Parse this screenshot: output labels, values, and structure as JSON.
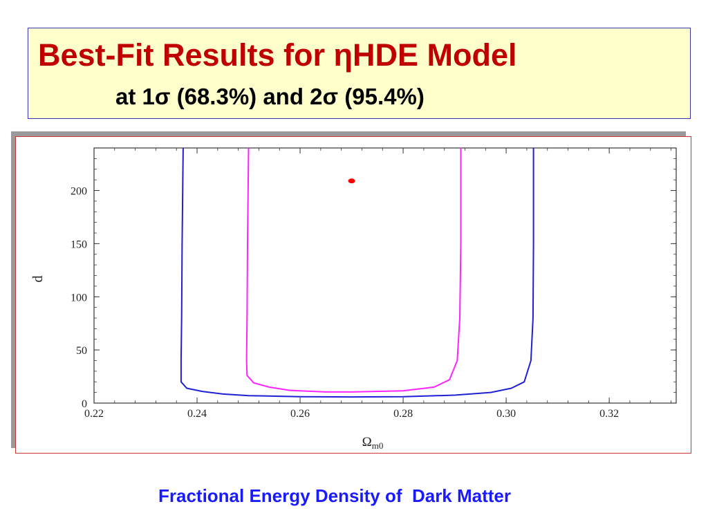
{
  "title": {
    "line1": "Best-Fit Results for ηHDE Model",
    "line2": "at 1σ (68.3%) and 2σ (95.4%)"
  },
  "caption": "Fractional Energy Density of  Dark Matter",
  "colors": {
    "title_box_bg": "#ffffcc",
    "title_text": "#c00000",
    "caption_text": "#1a1aff",
    "frame_border": "#cc3333"
  },
  "chart_data": {
    "type": "line",
    "xlabel": "Ωm0",
    "ylabel": "d",
    "xlim": [
      0.22,
      0.333
    ],
    "ylim": [
      0,
      240
    ],
    "x_ticks": [
      0.22,
      0.24,
      0.26,
      0.28,
      0.3,
      0.32
    ],
    "x_tick_labels": [
      "0.22",
      "0.24",
      "0.26",
      "0.28",
      "0.30",
      "0.32"
    ],
    "y_ticks": [
      0,
      50,
      100,
      150,
      200
    ],
    "y_tick_labels": [
      "0",
      "50",
      "100",
      "150",
      "200"
    ],
    "grid": false,
    "series": [
      {
        "color": "#1f1fd6",
        "points": [
          [
            0.2373,
            240
          ],
          [
            0.2371,
            150
          ],
          [
            0.237,
            80
          ],
          [
            0.2369,
            40
          ],
          [
            0.2369,
            20
          ],
          [
            0.238,
            14
          ],
          [
            0.241,
            11
          ],
          [
            0.245,
            8.5
          ],
          [
            0.25,
            7
          ],
          [
            0.26,
            6
          ],
          [
            0.27,
            5.8
          ],
          [
            0.28,
            6
          ],
          [
            0.29,
            7.5
          ],
          [
            0.297,
            10
          ],
          [
            0.301,
            14
          ],
          [
            0.3035,
            20
          ],
          [
            0.3048,
            40
          ],
          [
            0.3052,
            80
          ],
          [
            0.3053,
            150
          ],
          [
            0.3053,
            240
          ]
        ]
      },
      {
        "color": "#ff22ff",
        "points": [
          [
            0.25,
            240
          ],
          [
            0.2498,
            150
          ],
          [
            0.2497,
            80
          ],
          [
            0.2496,
            40
          ],
          [
            0.2497,
            26
          ],
          [
            0.251,
            19
          ],
          [
            0.254,
            15
          ],
          [
            0.258,
            12
          ],
          [
            0.265,
            10.5
          ],
          [
            0.27,
            10.5
          ],
          [
            0.28,
            11.5
          ],
          [
            0.286,
            15
          ],
          [
            0.289,
            22
          ],
          [
            0.2905,
            40
          ],
          [
            0.291,
            80
          ],
          [
            0.2912,
            150
          ],
          [
            0.2912,
            240
          ]
        ]
      }
    ],
    "best_fit_point": {
      "x": 0.27,
      "y": 209,
      "color": "#ff0000"
    }
  }
}
